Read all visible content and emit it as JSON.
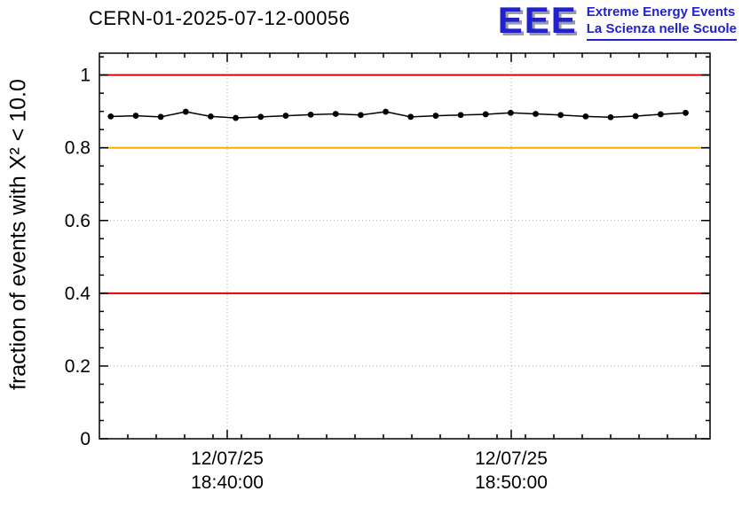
{
  "header": {
    "title": "CERN-01-2025-07-12-00056",
    "logo": {
      "acronym": "EEE",
      "line1": "Extreme Energy Events",
      "line2": "La Scienza nelle Scuole"
    }
  },
  "colors": {
    "logo_blue": "#2222cc",
    "logo_shadow": "#9a9a9a",
    "grid": "#aaaaaa",
    "frame": "#000000",
    "red_threshold": "#dd0000",
    "orange_threshold": "#ffaa00",
    "series": "#000000"
  },
  "chart_data": {
    "type": "line",
    "title": "CERN-01-2025-07-12-00056",
    "ylabel": "fraction of events with X² < 10.0",
    "xlabel": "",
    "grid": true,
    "legend": "none",
    "ylim": [
      0,
      1.06
    ],
    "yticks": [
      {
        "v": 0,
        "label": "0"
      },
      {
        "v": 0.2,
        "label": "0.2"
      },
      {
        "v": 0.4,
        "label": "0.4"
      },
      {
        "v": 0.6,
        "label": "0.6"
      },
      {
        "v": 0.8,
        "label": "0.8"
      },
      {
        "v": 1.0,
        "label": "1"
      }
    ],
    "xlim_minutes": [
      0,
      21.5
    ],
    "xticks": [
      {
        "v": 4.5,
        "line1": "12/07/25",
        "line2": "18:40:00"
      },
      {
        "v": 14.5,
        "line1": "12/07/25",
        "line2": "18:50:00"
      }
    ],
    "thresholds": [
      {
        "y": 1.0,
        "color": "#dd0000",
        "name": "upper-red-line"
      },
      {
        "y": 0.8,
        "color": "#ffaa00",
        "name": "orange-warning-line"
      },
      {
        "y": 0.4,
        "color": "#dd0000",
        "name": "lower-red-line"
      }
    ],
    "series": [
      {
        "name": "fraction of events with chi2 < 10.0",
        "color": "#000000",
        "marker": "circle",
        "yerr": 0.004,
        "x": [
          0.4,
          1.28,
          2.16,
          3.04,
          3.92,
          4.8,
          5.68,
          6.56,
          7.44,
          8.32,
          9.2,
          10.08,
          10.96,
          11.84,
          12.72,
          13.6,
          14.48,
          15.36,
          16.24,
          17.12,
          18.0,
          18.88,
          19.76,
          20.64
        ],
        "y": [
          0.886,
          0.888,
          0.885,
          0.899,
          0.886,
          0.882,
          0.885,
          0.888,
          0.891,
          0.893,
          0.89,
          0.899,
          0.885,
          0.888,
          0.89,
          0.892,
          0.896,
          0.893,
          0.89,
          0.886,
          0.884,
          0.887,
          0.892,
          0.896
        ]
      }
    ]
  }
}
